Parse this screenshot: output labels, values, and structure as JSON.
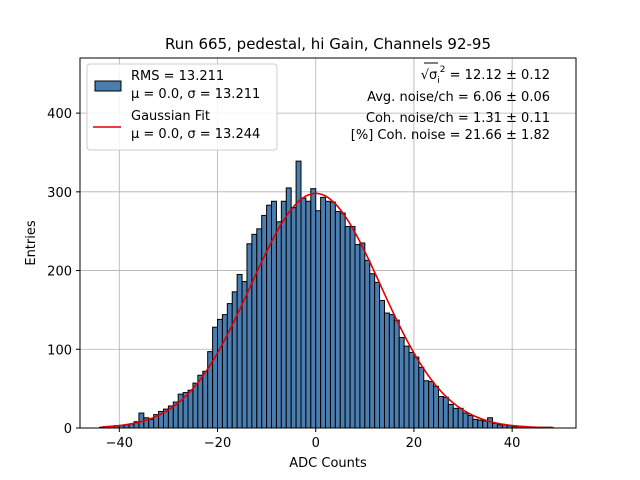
{
  "chart_data": {
    "type": "bar",
    "title": "Run 665, pedestal, hi Gain, Channels 92-95",
    "xlabel": "ADC Counts",
    "ylabel": "Entries",
    "xlim": [
      -48,
      53
    ],
    "ylim": [
      0,
      470
    ],
    "xticks": [
      -40,
      -20,
      0,
      20,
      40
    ],
    "xtick_labels": [
      "−40",
      "−20",
      "0",
      "20",
      "40"
    ],
    "yticks": [
      0,
      100,
      200,
      300,
      400
    ],
    "ytick_labels": [
      "0",
      "100",
      "200",
      "300",
      "400"
    ],
    "grid": true,
    "bin_width": 1,
    "bin_start": -44,
    "histogram_values": [
      1,
      1,
      2,
      3,
      3,
      4,
      5,
      8,
      19,
      13,
      11,
      17,
      21,
      24,
      28,
      33,
      43,
      45,
      48,
      57,
      67,
      72,
      97,
      128,
      138,
      144,
      158,
      173,
      195,
      186,
      234,
      246,
      253,
      270,
      283,
      288,
      262,
      288,
      305,
      280,
      339,
      292,
      288,
      304,
      276,
      293,
      288,
      287,
      275,
      273,
      256,
      256,
      233,
      235,
      213,
      196,
      185,
      162,
      146,
      144,
      137,
      115,
      104,
      96,
      90,
      77,
      60,
      59,
      53,
      40,
      39,
      30,
      25,
      25,
      19,
      16,
      11,
      10,
      9,
      13,
      6,
      4,
      4,
      3,
      2,
      2,
      2,
      1,
      1,
      0,
      1,
      1
    ],
    "bar_color": "#4a7eb0",
    "fit_color": "#e00000",
    "fit": {
      "mu": 0.0,
      "sigma": 13.244,
      "amplitude": 298,
      "x_range": [
        -43.5,
        48.5
      ]
    },
    "legend": {
      "placement": "upper-left",
      "entries": [
        {
          "kind": "patch",
          "line1": "RMS = 13.211",
          "line2": "μ = 0.0, σ = 13.211"
        },
        {
          "kind": "line",
          "line1": "Gaussian Fit",
          "line2": "μ = 0.0, σ = 13.244"
        }
      ]
    },
    "annotations": [
      {
        "prefix": "√",
        "base": "σ",
        "sub": "i",
        "sup": "2",
        "text": " = 12.12 ± 0.12"
      },
      {
        "text": "Avg. noise/ch = 6.06 ± 0.06"
      },
      {
        "text": "Coh. noise/ch = 1.31 ± 0.11"
      },
      {
        "text": "[%] Coh. noise = 21.66 ± 1.82"
      }
    ]
  }
}
